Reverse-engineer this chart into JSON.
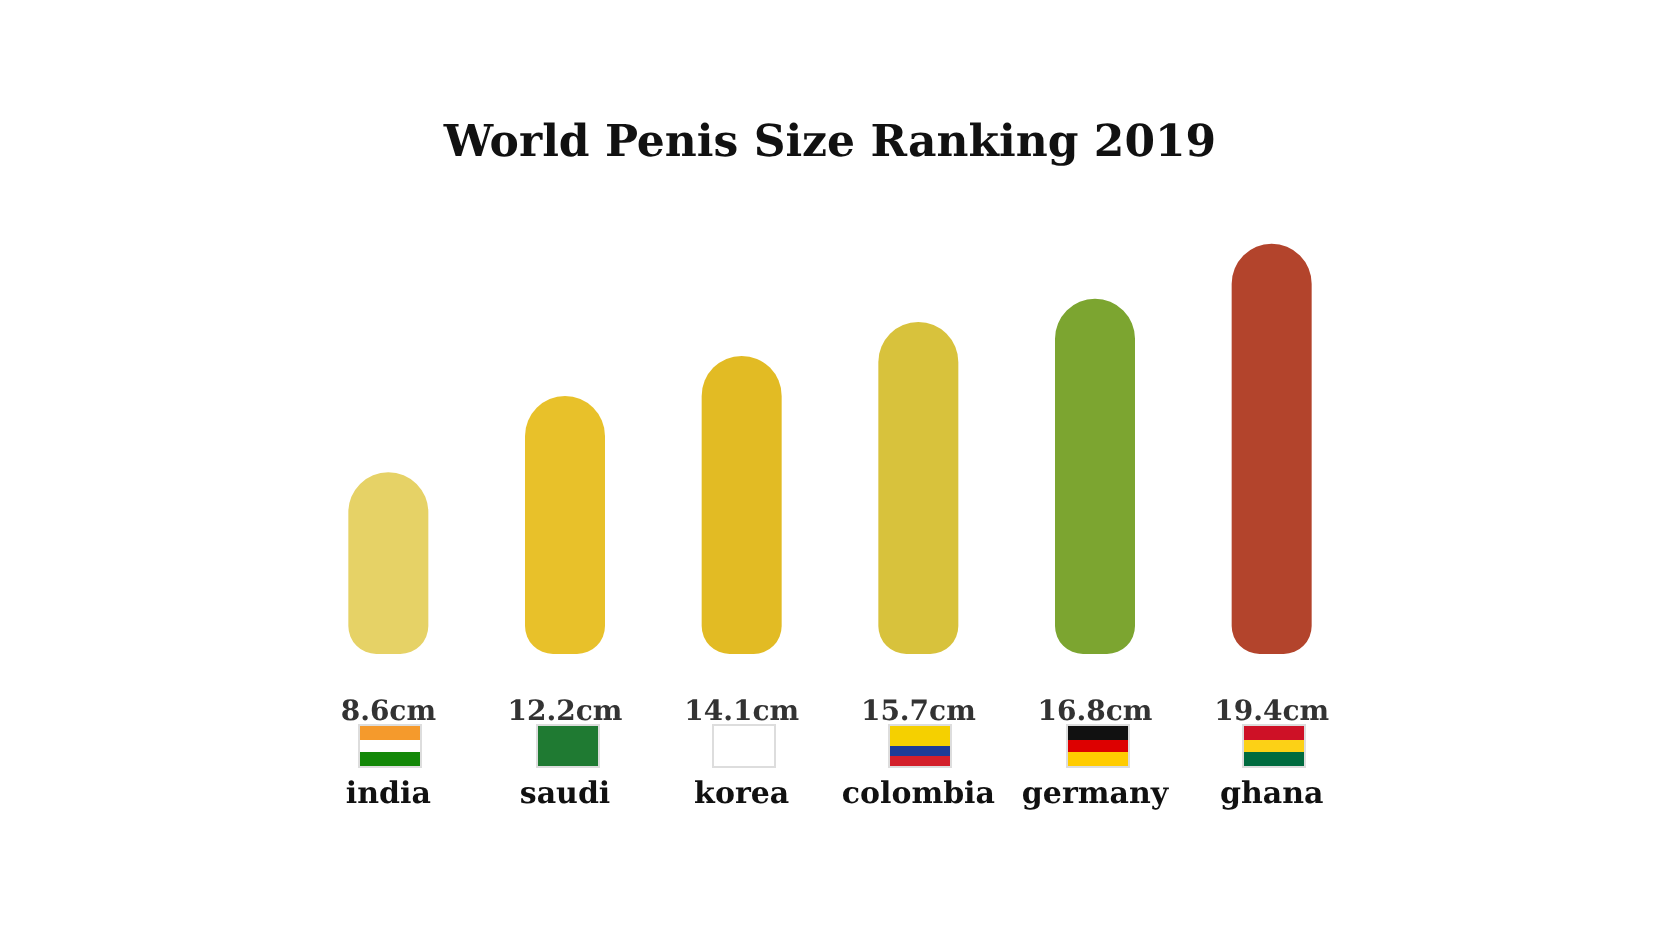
{
  "chart_data": {
    "type": "bar",
    "title": "World Penis Size Ranking 2019",
    "categories": [
      "india",
      "saudi",
      "korea",
      "colombia",
      "germany",
      "ghana"
    ],
    "values": [
      8.6,
      12.2,
      14.1,
      15.7,
      16.8,
      19.4
    ],
    "colors": [
      "#e6d266",
      "#e8c12a",
      "#e2bb24",
      "#d8c23c",
      "#7ca530",
      "#b3442c"
    ],
    "value_labels": [
      "8.6cm",
      "12.2cm",
      "14.1cm",
      "15.7cm",
      "16.8cm",
      "19.4cm"
    ]
  }
}
